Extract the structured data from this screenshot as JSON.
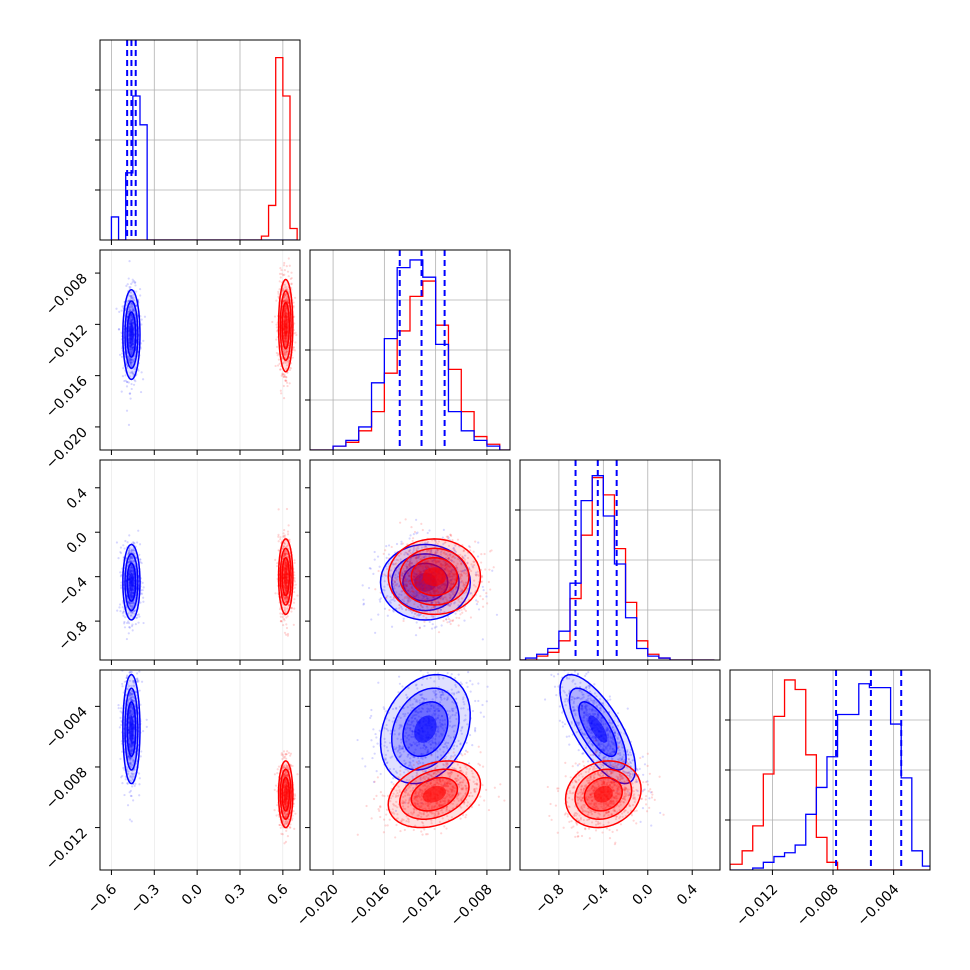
{
  "chart_data": {
    "type": "scatter",
    "kind": "corner-plot",
    "grid": true,
    "colors": {
      "blue": "#0000ff",
      "red": "#ff0000"
    },
    "parameters": [
      {
        "range": [
          -0.68,
          0.72
        ],
        "ticks": [
          "−0.6",
          "−0.3",
          "0.0",
          "0.3",
          "0.6"
        ],
        "tick_values": [
          -0.6,
          -0.3,
          0.0,
          0.3,
          0.6
        ]
      },
      {
        "range": [
          -0.0218,
          -0.0062
        ],
        "ticks": [
          "−0.020",
          "−0.016",
          "−0.012",
          "−0.008"
        ],
        "tick_values": [
          -0.02,
          -0.016,
          -0.012,
          -0.008
        ]
      },
      {
        "range": [
          -1.15,
          0.65
        ],
        "ticks": [
          "−0.8",
          "−0.4",
          "0.0",
          "0.4"
        ],
        "tick_values": [
          -0.8,
          -0.4,
          0.0,
          0.4
        ]
      },
      {
        "range": [
          -0.0148,
          -0.0016
        ],
        "ticks": [
          "−0.012",
          "−0.008",
          "−0.004"
        ],
        "tick_values": [
          -0.012,
          -0.008,
          -0.004
        ]
      }
    ],
    "series": [
      {
        "color": "blue",
        "means": [
          -0.46,
          -0.0128,
          -0.45,
          -0.0055
        ],
        "sigmas": [
          0.03,
          0.00175,
          0.17,
          0.0018
        ],
        "corr": [
          [
            0,
            3,
            0.0
          ],
          [
            1,
            3,
            0.25
          ],
          [
            2,
            3,
            -0.72
          ]
        ],
        "quantiles": [
          [
            -0.49,
            -0.46,
            -0.43
          ],
          [
            -0.0148,
            -0.0131,
            -0.0113
          ],
          [
            -0.65,
            -0.45,
            -0.28
          ],
          [
            -0.0078,
            -0.0055,
            -0.0035
          ]
        ]
      },
      {
        "color": "red",
        "means": [
          0.62,
          -0.0121,
          -0.4,
          -0.0098
        ],
        "sigmas": [
          0.025,
          0.0018,
          0.17,
          0.0011
        ],
        "corr": [
          [
            1,
            3,
            0.3
          ],
          [
            2,
            3,
            0.15
          ]
        ],
        "quantiles": null
      }
    ],
    "histograms": [
      {
        "bins": [
          -0.6,
          -0.55,
          -0.5,
          -0.45,
          -0.4,
          -0.35,
          0.45,
          0.5,
          0.55,
          0.6,
          0.65,
          0.7
        ],
        "blue": [
          0.12,
          0.0,
          0.35,
          0.75,
          0.6,
          0.0,
          0.0,
          0.0,
          0.0,
          0.0,
          0.0
        ],
        "red": [
          0.0,
          0.0,
          0.0,
          0.0,
          0.0,
          0.0,
          0.02,
          0.18,
          0.95,
          0.75,
          0.06
        ]
      },
      {
        "bins": [
          -0.022,
          -0.021,
          -0.02,
          -0.019,
          -0.018,
          -0.017,
          -0.016,
          -0.015,
          -0.014,
          -0.013,
          -0.012,
          -0.011,
          -0.01,
          -0.009,
          -0.008,
          -0.007,
          -0.006
        ],
        "blue": [
          0.0,
          0.0,
          0.02,
          0.05,
          0.12,
          0.35,
          0.58,
          0.95,
          0.99,
          0.9,
          0.55,
          0.2,
          0.1,
          0.05,
          0.02,
          0.0
        ],
        "red": [
          0.0,
          0.0,
          0.02,
          0.04,
          0.1,
          0.2,
          0.4,
          0.62,
          0.8,
          0.88,
          0.65,
          0.42,
          0.2,
          0.07,
          0.03,
          0.0
        ]
      },
      {
        "bins": [
          -1.2,
          -1.1,
          -1.0,
          -0.9,
          -0.8,
          -0.7,
          -0.6,
          -0.5,
          -0.4,
          -0.3,
          -0.2,
          -0.1,
          0.0,
          0.1,
          0.2,
          0.3,
          0.4,
          0.5,
          0.6
        ],
        "blue": [
          0.0,
          0.01,
          0.03,
          0.06,
          0.15,
          0.4,
          0.83,
          0.96,
          0.75,
          0.5,
          0.22,
          0.06,
          0.02,
          0.01,
          0.0,
          0.0,
          0.0,
          0.0
        ],
        "red": [
          0.0,
          0.0,
          0.02,
          0.04,
          0.1,
          0.32,
          0.65,
          0.95,
          0.86,
          0.58,
          0.3,
          0.1,
          0.03,
          0.01,
          0.0,
          0.0,
          0.0,
          0.0
        ]
      },
      {
        "bins": [
          -0.0148,
          -0.014,
          -0.0133,
          -0.0126,
          -0.0119,
          -0.0112,
          -0.0105,
          -0.0098,
          -0.0091,
          -0.0084,
          -0.0077,
          -0.007,
          -0.0063,
          -0.0056,
          -0.0049,
          -0.0042,
          -0.0035,
          -0.0028,
          -0.0021,
          -0.0014
        ],
        "blue": [
          0.0,
          0.0,
          0.01,
          0.04,
          0.07,
          0.09,
          0.13,
          0.29,
          0.43,
          0.59,
          0.81,
          0.81,
          0.97,
          0.95,
          0.95,
          0.76,
          0.48,
          0.1,
          0.02
        ],
        "red": [
          0.03,
          0.1,
          0.23,
          0.5,
          0.8,
          0.99,
          0.94,
          0.6,
          0.17,
          0.04,
          0.0,
          0.0,
          0.0,
          0.0,
          0.0,
          0.0,
          0.0,
          0.0,
          0.0
        ]
      }
    ]
  }
}
